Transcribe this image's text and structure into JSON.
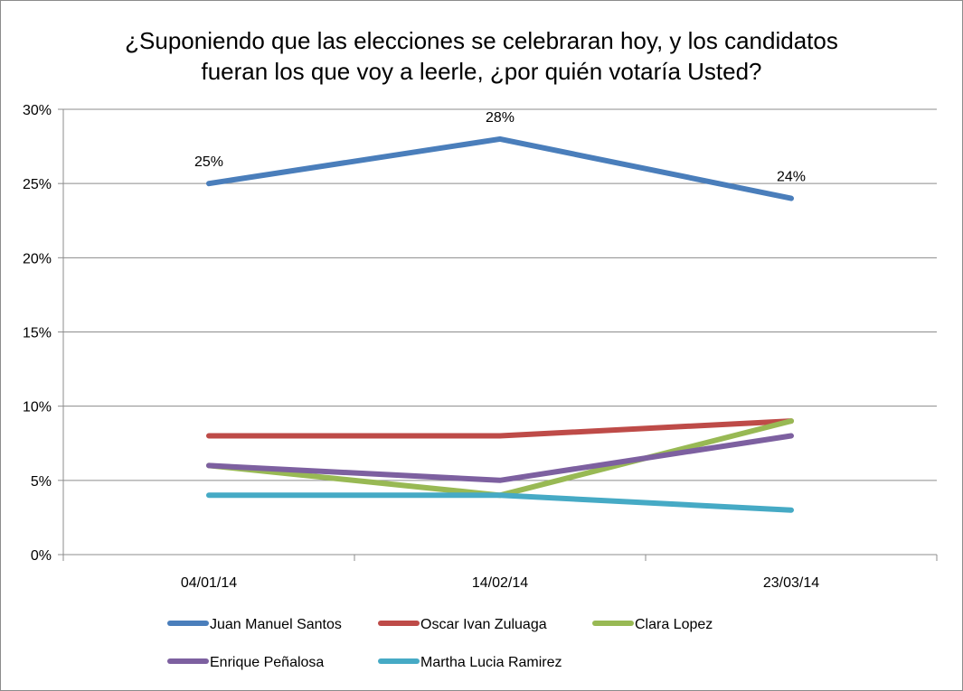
{
  "chart_data": {
    "type": "line",
    "title_lines": [
      "¿Suponiendo que las elecciones se celebraran hoy, y los candidatos",
      "fueran los que voy a leerle, ¿por quién votaría Usted?"
    ],
    "categories": [
      "04/01/14",
      "14/02/14",
      "23/03/14"
    ],
    "ylim": [
      0,
      30
    ],
    "yticks": [
      0,
      5,
      10,
      15,
      20,
      25,
      30
    ],
    "ytick_labels": [
      "0%",
      "5%",
      "10%",
      "15%",
      "20%",
      "25%",
      "30%"
    ],
    "grid": true,
    "legend_position": "bottom",
    "series": [
      {
        "name": "Juan Manuel Santos",
        "color": "#4a7ebb",
        "values": [
          25,
          28,
          24
        ],
        "data_labels": [
          "25%",
          "28%",
          "24%"
        ]
      },
      {
        "name": "Oscar Ivan Zuluaga",
        "color": "#be4b48",
        "values": [
          8,
          8,
          9
        ]
      },
      {
        "name": "Clara Lopez",
        "color": "#98b954",
        "values": [
          6,
          4,
          9
        ]
      },
      {
        "name": "Enrique Peñalosa",
        "color": "#7d60a0",
        "values": [
          6,
          5,
          8
        ]
      },
      {
        "name": "Martha Lucia Ramirez",
        "color": "#46aac5",
        "values": [
          4,
          4,
          3
        ]
      }
    ]
  }
}
